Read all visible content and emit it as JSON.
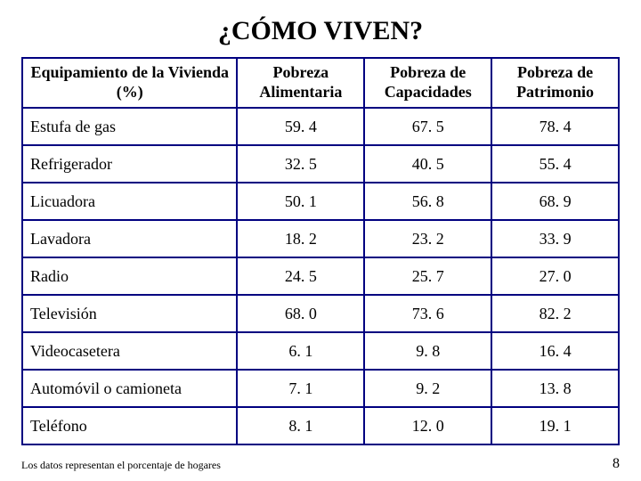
{
  "title": "¿CÓMO VIVEN?",
  "table": {
    "columns": [
      "Equipamiento de la Vivienda (%)",
      "Pobreza Alimentaria",
      "Pobreza de Capacidades",
      "Pobreza de Patrimonio"
    ],
    "col_header_lines": {
      "c0a": "Equipamiento de la Vivienda",
      "c0b": "(%)",
      "c1a": "Pobreza",
      "c1b": "Alimentaria",
      "c2a": "Pobreza de",
      "c2b": "Capacidades",
      "c3a": "Pobreza de",
      "c3b": "Patrimonio"
    },
    "rows": [
      {
        "label": "Estufa de gas",
        "v": [
          "59. 4",
          "67. 5",
          "78. 4"
        ]
      },
      {
        "label": "Refrigerador",
        "v": [
          "32. 5",
          "40. 5",
          "55. 4"
        ]
      },
      {
        "label": "Licuadora",
        "v": [
          "50. 1",
          "56. 8",
          "68. 9"
        ]
      },
      {
        "label": "Lavadora",
        "v": [
          "18. 2",
          "23. 2",
          "33. 9"
        ]
      },
      {
        "label": "Radio",
        "v": [
          "24. 5",
          "25. 7",
          "27. 0"
        ]
      },
      {
        "label": "Televisión",
        "v": [
          "68. 0",
          "73. 6",
          "82. 2"
        ]
      },
      {
        "label": "Videocasetera",
        "v": [
          "6. 1",
          "9. 8",
          "16. 4"
        ]
      },
      {
        "label": "Automóvil o camioneta",
        "v": [
          "7. 1",
          "9. 2",
          "13. 8"
        ]
      },
      {
        "label": "Teléfono",
        "v": [
          "8. 1",
          "12. 0",
          "19. 1"
        ]
      }
    ],
    "border_color": "#000080",
    "background_color": "#ffffff",
    "header_fontsize": 18,
    "cell_fontsize": 18
  },
  "footnote": "Los datos representan el porcentaje de hogares",
  "page_number": "8"
}
